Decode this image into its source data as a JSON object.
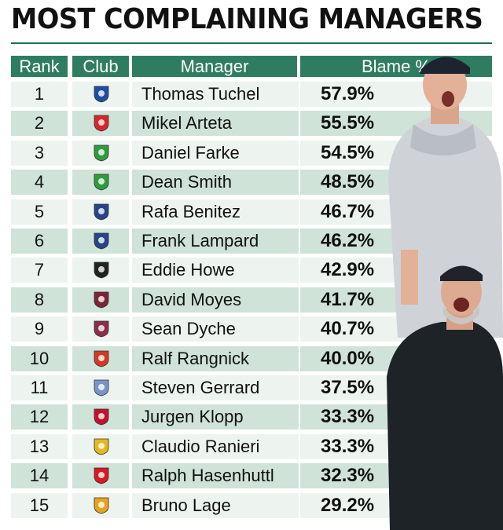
{
  "title": "MOST COMPLAINING MANAGERS",
  "headers": {
    "rank": "Rank",
    "club": "Club",
    "manager": "Manager",
    "blame": "Blame %"
  },
  "rows": [
    {
      "rank": "1",
      "manager": "Thomas Tuchel",
      "blame": "57.9%",
      "badge": "chelsea-badge-icon",
      "color": "#1d4fa3"
    },
    {
      "rank": "2",
      "manager": "Mikel Arteta",
      "blame": "55.5%",
      "badge": "arsenal-badge-icon",
      "color": "#d6262b"
    },
    {
      "rank": "3",
      "manager": "Daniel Farke",
      "blame": "54.5%",
      "badge": "norwich-badge-icon",
      "color": "#2f9b3e"
    },
    {
      "rank": "4",
      "manager": "Dean Smith",
      "blame": "48.5%",
      "badge": "norwich-badge-icon",
      "color": "#2f9b3e"
    },
    {
      "rank": "5",
      "manager": "Rafa Benitez",
      "blame": "46.7%",
      "badge": "everton-badge-icon",
      "color": "#274488"
    },
    {
      "rank": "6",
      "manager": "Frank Lampard",
      "blame": "46.2%",
      "badge": "everton-badge-icon",
      "color": "#274488"
    },
    {
      "rank": "7",
      "manager": "Eddie Howe",
      "blame": "42.9%",
      "badge": "newcastle-badge-icon",
      "color": "#222222"
    },
    {
      "rank": "8",
      "manager": "David Moyes",
      "blame": "41.7%",
      "badge": "west-ham-badge-icon",
      "color": "#7a2637"
    },
    {
      "rank": "9",
      "manager": "Sean Dyche",
      "blame": "40.7%",
      "badge": "burnley-badge-icon",
      "color": "#8a2f4a"
    },
    {
      "rank": "10",
      "manager": "Ralf Rangnick",
      "blame": "40.0%",
      "badge": "man-united-badge-icon",
      "color": "#d23a22"
    },
    {
      "rank": "11",
      "manager": "Steven Gerrard",
      "blame": "37.5%",
      "badge": "aston-villa-badge-icon",
      "color": "#7b94c8"
    },
    {
      "rank": "12",
      "manager": "Jurgen Klopp",
      "blame": "33.3%",
      "badge": "liverpool-badge-icon",
      "color": "#c8102e"
    },
    {
      "rank": "13",
      "manager": "Claudio Ranieri",
      "blame": "33.3%",
      "badge": "watford-badge-icon",
      "color": "#e5b81c"
    },
    {
      "rank": "14",
      "manager": "Ralph Hasenhuttl",
      "blame": "32.3%",
      "badge": "southampton-badge-icon",
      "color": "#d71920"
    },
    {
      "rank": "15",
      "manager": "Bruno Lage",
      "blame": "29.2%",
      "badge": "wolves-badge-icon",
      "color": "#e8a31d"
    }
  ]
}
